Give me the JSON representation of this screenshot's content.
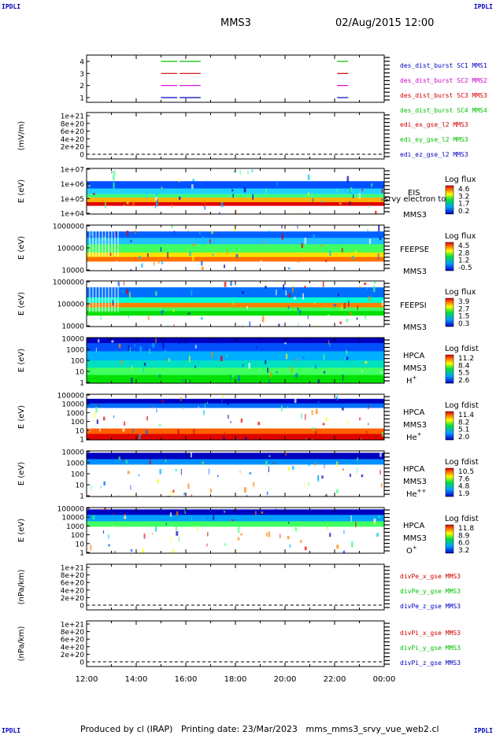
{
  "corners": {
    "tl": "IPDLI",
    "tr": "IPDLI",
    "bl": "IPDLI",
    "br": "IPDLI"
  },
  "header": {
    "spacecraft": "MMS3",
    "datetime": "02/Aug/2015 12:00"
  },
  "footer": "Produced by cl (IRAP)   Printing date: 23/Mar/2023   mms_mms3_srvy_vue_web2.cl",
  "colors": {
    "red": "#d00000",
    "green": "#00c000",
    "blue": "#0000c0",
    "magenta": "#d000d0"
  },
  "chart_data": [
    {
      "type": "line",
      "id": "burst",
      "yticks": [
        "1",
        "2",
        "3",
        "4"
      ],
      "x_ticks": [
        "12:00",
        "14:00",
        "16:00",
        "18:00",
        "20:00",
        "22:00",
        "00:00"
      ],
      "legend": [
        {
          "text": "des_dist_burst SC1 MMS1",
          "color": "blue"
        },
        {
          "text": "des_dist_burst SC2 MMS2",
          "color": "magenta"
        },
        {
          "text": "des_dist_burst SC3 MMS3",
          "color": "red"
        },
        {
          "text": "des_dist_burst SC4 MMS4",
          "color": "green"
        }
      ],
      "segments_hours": [
        [
          15.0,
          15.65
        ],
        [
          15.75,
          16.6
        ],
        [
          22.1,
          22.55
        ]
      ],
      "series": [
        {
          "sc": 1,
          "color": "blue"
        },
        {
          "sc": 2,
          "color": "magenta"
        },
        {
          "sc": 3,
          "color": "red"
        },
        {
          "sc": 4,
          "color": "green"
        }
      ]
    },
    {
      "type": "line",
      "id": "efield",
      "ylabel": "(mV/m)",
      "yticks": [
        "0",
        "2e+20",
        "4e+20",
        "6e+20",
        "8e+20",
        "1e+21"
      ],
      "legend": [
        {
          "text": "edi_ex_gse_l2 MMS3",
          "color": "red"
        },
        {
          "text": "edi_ey_gse_l2 MMS3",
          "color": "green"
        },
        {
          "text": "edi_ez_gse_l2 MMS3",
          "color": "blue"
        }
      ]
    },
    {
      "type": "heatmap",
      "id": "eis",
      "ylabel": "E (eV)",
      "yticks": [
        "1e+04",
        "1e+05",
        "1e+06",
        "1e+07"
      ],
      "labels": [
        "EIS",
        "MMS3"
      ],
      "overlay_text": "srvy electron to",
      "cbar_title": "Log flux",
      "cbar_ticks": [
        "4.6",
        "3.2",
        "1.7",
        "0.2"
      ]
    },
    {
      "type": "heatmap",
      "id": "feepse",
      "ylabel": "E (eV)",
      "yticks": [
        "10000",
        "100000",
        "1000000"
      ],
      "labels": [
        "FEEPSE",
        "MMS3"
      ],
      "cbar_title": "Log flux",
      "cbar_ticks": [
        "4.5",
        "2.8",
        "1.2",
        "-0.5"
      ]
    },
    {
      "type": "heatmap",
      "id": "feepsi",
      "ylabel": "E (eV)",
      "yticks": [
        "10000",
        "100000",
        "1000000"
      ],
      "labels": [
        "FEEPSI",
        "MMS3"
      ],
      "cbar_title": "Log flux",
      "cbar_ticks": [
        "3.9",
        "2.7",
        "1.5",
        "0.3"
      ]
    },
    {
      "type": "heatmap",
      "id": "hpca_h",
      "ylabel": "E (eV)",
      "yticks": [
        "1",
        "10",
        "100",
        "1000",
        "10000"
      ],
      "labels": [
        "HPCA",
        "MMS3"
      ],
      "species": "H",
      "charge": "+",
      "cbar_title": "Log fdist",
      "cbar_ticks": [
        "11.2",
        "8.4",
        "5.5",
        "2.6"
      ]
    },
    {
      "type": "heatmap",
      "id": "hpca_he",
      "ylabel": "E (eV)",
      "yticks": [
        "1",
        "10",
        "100",
        "1000",
        "10000",
        "100000"
      ],
      "labels": [
        "HPCA",
        "MMS3"
      ],
      "species": "He",
      "charge": "+",
      "cbar_title": "Log fdist",
      "cbar_ticks": [
        "11.4",
        "8.2",
        "5.1",
        "2.0"
      ]
    },
    {
      "type": "heatmap",
      "id": "hpca_hepp",
      "ylabel": "E (eV)",
      "yticks": [
        "1",
        "10",
        "100",
        "1000",
        "10000"
      ],
      "labels": [
        "HPCA",
        "MMS3"
      ],
      "species": "He",
      "charge": "++",
      "cbar_title": "Log fdist",
      "cbar_ticks": [
        "10.5",
        "7.6",
        "4.8",
        "1.9"
      ]
    },
    {
      "type": "heatmap",
      "id": "hpca_o",
      "ylabel": "E (eV)",
      "yticks": [
        "1",
        "10",
        "100",
        "1000",
        "10000",
        "100000"
      ],
      "labels": [
        "HPCA",
        "MMS3"
      ],
      "species": "O",
      "charge": "+",
      "cbar_title": "Log fdist",
      "cbar_ticks": [
        "11.8",
        "8.9",
        "6.0",
        "3.2"
      ]
    },
    {
      "type": "line",
      "id": "divpe",
      "ylabel": "(nPa/km)",
      "yticks": [
        "0",
        "2e+20",
        "4e+20",
        "6e+20",
        "8e+20",
        "1e+21"
      ],
      "legend": [
        {
          "text": "divPe_x_gse MMS3",
          "color": "red"
        },
        {
          "text": "divPe_y_gse MMS3",
          "color": "green"
        },
        {
          "text": "divPe_z_gse MMS3",
          "color": "blue"
        }
      ]
    },
    {
      "type": "line",
      "id": "divpi",
      "ylabel": "(nPa/km)",
      "yticks": [
        "0",
        "2e+20",
        "4e+20",
        "6e+20",
        "8e+20",
        "1e+21"
      ],
      "legend": [
        {
          "text": "divPi_x_gse MMS3",
          "color": "red"
        },
        {
          "text": "divPi_y_gse MMS3",
          "color": "green"
        },
        {
          "text": "divPi_z_gse MMS3",
          "color": "blue"
        }
      ]
    }
  ]
}
